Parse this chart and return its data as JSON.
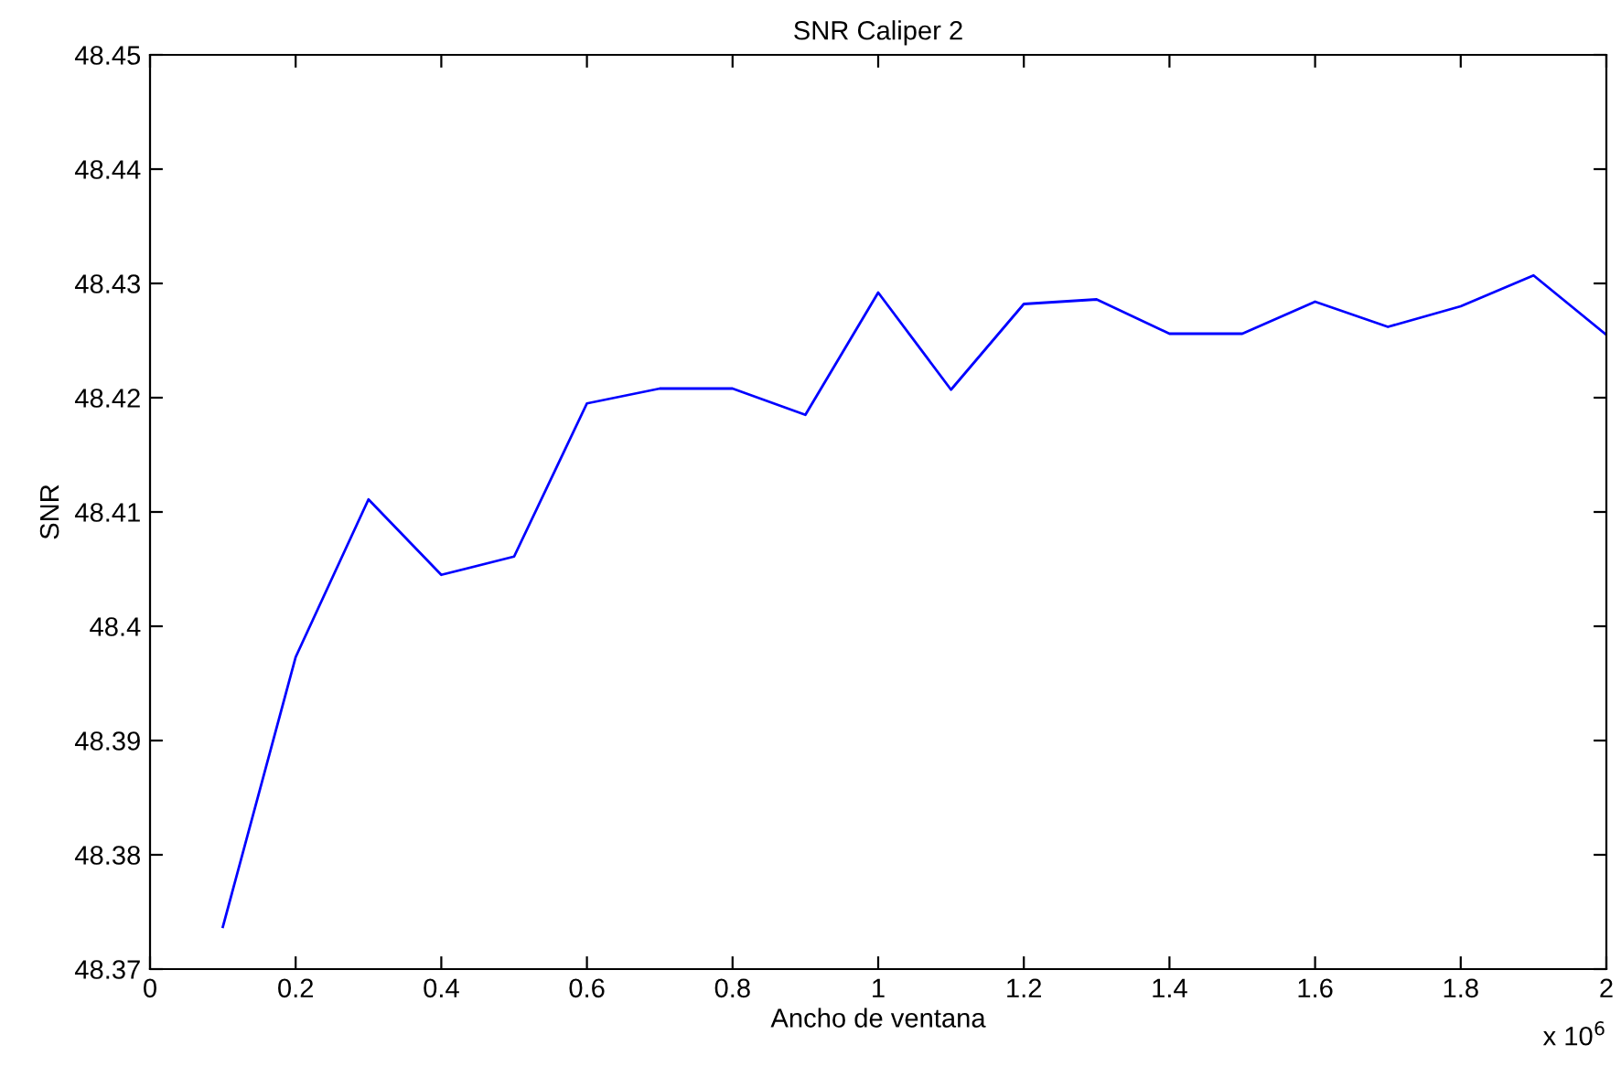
{
  "chart_data": {
    "type": "line",
    "title": "SNR Caliper 2",
    "xlabel": "Ancho de ventana",
    "ylabel": "SNR",
    "x": [
      0.1,
      0.2,
      0.3,
      0.4,
      0.5,
      0.6,
      0.7,
      0.8,
      0.9,
      1.0,
      1.1,
      1.2,
      1.3,
      1.4,
      1.5,
      1.6,
      1.7,
      1.8,
      1.9,
      2.0
    ],
    "series": [
      {
        "color": "#0000ff",
        "values": [
          48.3737,
          48.3973,
          48.4111,
          48.4045,
          48.4061,
          48.4195,
          48.4208,
          48.4208,
          48.4185,
          48.4292,
          48.4207,
          48.4282,
          48.4286,
          48.4256,
          48.4256,
          48.4284,
          48.4262,
          48.428,
          48.4307,
          48.4255
        ]
      }
    ],
    "xlim": [
      0,
      2
    ],
    "xticks": [
      0,
      0.2,
      0.4,
      0.6,
      0.8,
      1,
      1.2,
      1.4,
      1.6,
      1.8,
      2
    ],
    "ylim": [
      48.37,
      48.45
    ],
    "yticks": [
      48.37,
      48.38,
      48.39,
      48.4,
      48.41,
      48.42,
      48.43,
      48.44,
      48.45
    ],
    "annotations": [
      "x 10$^{6}$"
    ],
    "grid": false,
    "legend": false,
    "marker": "none",
    "line_style": "solid"
  }
}
